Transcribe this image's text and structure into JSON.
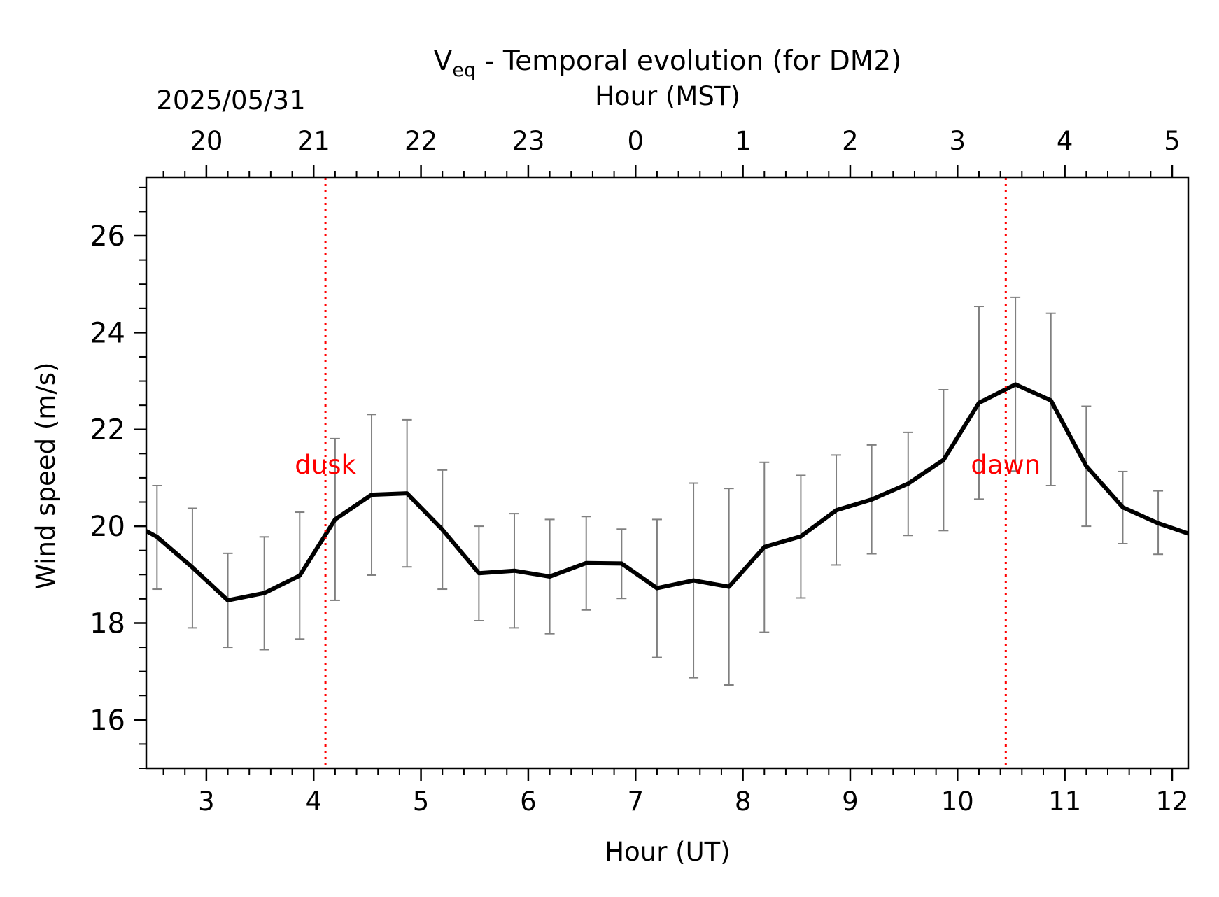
{
  "chart_data": {
    "type": "line",
    "title_main": "V",
    "title_sub": "eq",
    "title_rest": " - Temporal evolution (for DM2)",
    "top_date": "2025/05/31",
    "top_xlabel": "Hour (MST)",
    "xlabel": "Hour (UT)",
    "ylabel": "Wind speed (m/s)",
    "xlim": [
      2.44,
      12.15
    ],
    "ylim": [
      15.0,
      27.2
    ],
    "x_ticks": [
      3,
      4,
      5,
      6,
      7,
      8,
      9,
      10,
      11,
      12
    ],
    "x_tick_labels": [
      "3",
      "4",
      "5",
      "6",
      "7",
      "8",
      "9",
      "10",
      "11",
      "12"
    ],
    "y_ticks": [
      16,
      18,
      20,
      22,
      24,
      26
    ],
    "y_tick_labels": [
      "16",
      "18",
      "20",
      "22",
      "24",
      "26"
    ],
    "top_ticks_ut": [
      3,
      4,
      5,
      6,
      7,
      8,
      9,
      10,
      11,
      12
    ],
    "top_tick_labels": [
      "20",
      "21",
      "22",
      "23",
      "0",
      "1",
      "2",
      "3",
      "4",
      "5"
    ],
    "grid": false,
    "series": [
      {
        "color": "#000000",
        "x": [
          2.44,
          2.54,
          2.87,
          3.2,
          3.54,
          3.87,
          4.2,
          4.54,
          4.87,
          5.2,
          5.54,
          5.87,
          6.2,
          6.54,
          6.87,
          7.2,
          7.54,
          7.87,
          8.2,
          8.54,
          8.87,
          9.2,
          9.54,
          9.87,
          10.2,
          10.54,
          10.87,
          11.2,
          11.54,
          11.87,
          12.15
        ],
        "y": [
          19.9,
          19.78,
          19.15,
          18.47,
          18.62,
          18.98,
          20.14,
          20.65,
          20.68,
          19.93,
          19.03,
          19.08,
          18.96,
          19.24,
          19.23,
          18.72,
          18.88,
          18.75,
          19.57,
          19.79,
          20.33,
          20.55,
          20.88,
          21.37,
          22.55,
          22.93,
          22.6,
          21.24,
          20.39,
          20.06,
          19.85
        ]
      }
    ],
    "errorbars": {
      "color": "#808080",
      "x": [
        2.54,
        2.87,
        3.2,
        3.54,
        3.87,
        4.2,
        4.54,
        4.87,
        5.2,
        5.54,
        5.87,
        6.2,
        6.54,
        6.87,
        7.2,
        7.54,
        7.87,
        8.2,
        8.54,
        8.87,
        9.2,
        9.54,
        9.87,
        10.2,
        10.54,
        10.87,
        11.2,
        11.54,
        11.87
      ],
      "low": [
        18.7,
        17.9,
        17.5,
        17.45,
        17.67,
        18.47,
        18.99,
        19.16,
        18.7,
        18.05,
        17.9,
        17.78,
        18.27,
        18.51,
        17.29,
        16.87,
        16.72,
        17.81,
        18.52,
        19.2,
        19.43,
        19.81,
        19.91,
        20.56,
        21.14,
        20.84,
        20.0,
        19.64,
        19.42
      ],
      "high": [
        20.84,
        20.37,
        19.44,
        19.78,
        20.29,
        21.81,
        22.31,
        22.2,
        21.16,
        20.0,
        20.26,
        20.14,
        20.2,
        19.94,
        20.14,
        20.89,
        20.78,
        21.32,
        21.05,
        21.47,
        21.68,
        21.94,
        22.82,
        24.54,
        24.73,
        24.4,
        22.48,
        21.13,
        20.73
      ]
    },
    "annotations": [
      {
        "text": "dusk",
        "x": 4.11,
        "y": 21.0,
        "color": "#ff0000",
        "line_style": "dotted"
      },
      {
        "text": "dawn",
        "x": 10.45,
        "y": 21.0,
        "color": "#ff0000",
        "line_style": "dotted"
      }
    ]
  }
}
